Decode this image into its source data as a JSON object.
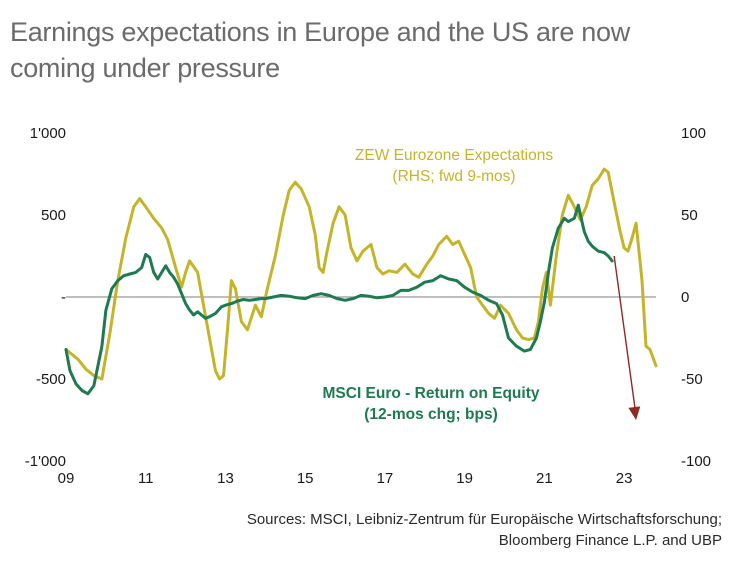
{
  "title": {
    "line1": "Earnings expectations in Europe and the US are now",
    "line2": "coming under pressure"
  },
  "sources": {
    "line1": "Sources: MSCI, Leibniz-Zentrum für Europäische Wirtschaftsforschung;",
    "line2": "Bloomberg Finance L.P. and UBP"
  },
  "colors": {
    "zew": "#c5b42a",
    "roe": "#1e7a50",
    "arrow": "#8c2a24",
    "zero_line": "#999999"
  },
  "chart_data": {
    "type": "line",
    "x_range": [
      2009,
      2023.8
    ],
    "y_left_range": [
      -1000,
      1000
    ],
    "y_right_range": [
      -100,
      100
    ],
    "x_ticks": [
      "09",
      "11",
      "13",
      "15",
      "17",
      "19",
      "21",
      "23"
    ],
    "y_left_ticks": [
      "1'000",
      "500",
      "-",
      "-500",
      "-1'000"
    ],
    "y_right_ticks": [
      "100",
      "50",
      "0",
      "-50",
      "-100"
    ],
    "annotations": {
      "zew_line1": "ZEW Eurozone Expectations",
      "zew_line2": "(RHS; fwd 9-mos)",
      "roe_line1": "MSCI Euro - Return on Equity",
      "roe_line2": "(12-mos chg; bps)"
    },
    "series": [
      {
        "name": "ZEW Eurozone Expectations",
        "axis": "right",
        "points": [
          [
            2009.0,
            -32
          ],
          [
            2009.3,
            -38
          ],
          [
            2009.5,
            -44
          ],
          [
            2009.7,
            -48
          ],
          [
            2009.9,
            -50
          ],
          [
            2010.1,
            -22
          ],
          [
            2010.3,
            10
          ],
          [
            2010.5,
            36
          ],
          [
            2010.7,
            55
          ],
          [
            2010.85,
            60
          ],
          [
            2011.0,
            55
          ],
          [
            2011.2,
            48
          ],
          [
            2011.4,
            42
          ],
          [
            2011.55,
            35
          ],
          [
            2011.75,
            18
          ],
          [
            2011.9,
            6
          ],
          [
            2012.0,
            15
          ],
          [
            2012.1,
            22
          ],
          [
            2012.3,
            15
          ],
          [
            2012.45,
            -5
          ],
          [
            2012.6,
            -25
          ],
          [
            2012.75,
            -45
          ],
          [
            2012.85,
            -50
          ],
          [
            2012.95,
            -48
          ],
          [
            2013.05,
            -20
          ],
          [
            2013.15,
            10
          ],
          [
            2013.25,
            5
          ],
          [
            2013.4,
            -15
          ],
          [
            2013.55,
            -20
          ],
          [
            2013.75,
            -5
          ],
          [
            2013.9,
            -12
          ],
          [
            2014.05,
            5
          ],
          [
            2014.25,
            25
          ],
          [
            2014.45,
            50
          ],
          [
            2014.6,
            65
          ],
          [
            2014.75,
            70
          ],
          [
            2014.9,
            66
          ],
          [
            2015.1,
            55
          ],
          [
            2015.25,
            38
          ],
          [
            2015.35,
            18
          ],
          [
            2015.45,
            15
          ],
          [
            2015.55,
            28
          ],
          [
            2015.7,
            45
          ],
          [
            2015.85,
            55
          ],
          [
            2016.0,
            50
          ],
          [
            2016.15,
            30
          ],
          [
            2016.3,
            22
          ],
          [
            2016.45,
            28
          ],
          [
            2016.65,
            32
          ],
          [
            2016.8,
            18
          ],
          [
            2016.95,
            14
          ],
          [
            2017.1,
            16
          ],
          [
            2017.3,
            15
          ],
          [
            2017.5,
            20
          ],
          [
            2017.7,
            14
          ],
          [
            2017.85,
            12
          ],
          [
            2018.05,
            20
          ],
          [
            2018.2,
            25
          ],
          [
            2018.35,
            32
          ],
          [
            2018.55,
            37
          ],
          [
            2018.7,
            32
          ],
          [
            2018.85,
            34
          ],
          [
            2019.0,
            26
          ],
          [
            2019.15,
            18
          ],
          [
            2019.3,
            0
          ],
          [
            2019.45,
            -5
          ],
          [
            2019.6,
            -10
          ],
          [
            2019.75,
            -13
          ],
          [
            2019.9,
            -5
          ],
          [
            2020.1,
            -10
          ],
          [
            2020.3,
            -20
          ],
          [
            2020.45,
            -25
          ],
          [
            2020.6,
            -26
          ],
          [
            2020.75,
            -25
          ],
          [
            2020.85,
            -15
          ],
          [
            2020.95,
            5
          ],
          [
            2021.05,
            15
          ],
          [
            2021.15,
            -5
          ],
          [
            2021.3,
            25
          ],
          [
            2021.45,
            50
          ],
          [
            2021.6,
            62
          ],
          [
            2021.75,
            55
          ],
          [
            2021.9,
            47
          ],
          [
            2022.05,
            55
          ],
          [
            2022.2,
            68
          ],
          [
            2022.35,
            72
          ],
          [
            2022.5,
            78
          ],
          [
            2022.6,
            76
          ],
          [
            2022.75,
            58
          ],
          [
            2022.9,
            40
          ],
          [
            2023.0,
            30
          ],
          [
            2023.1,
            28
          ],
          [
            2023.2,
            36
          ],
          [
            2023.3,
            45
          ],
          [
            2023.45,
            10
          ],
          [
            2023.55,
            -30
          ],
          [
            2023.65,
            -32
          ],
          [
            2023.8,
            -42
          ]
        ]
      },
      {
        "name": "MSCI Euro - Return on Equity",
        "axis": "left",
        "points": [
          [
            2009.0,
            -320
          ],
          [
            2009.1,
            -450
          ],
          [
            2009.25,
            -530
          ],
          [
            2009.4,
            -570
          ],
          [
            2009.55,
            -590
          ],
          [
            2009.7,
            -540
          ],
          [
            2009.8,
            -420
          ],
          [
            2009.9,
            -300
          ],
          [
            2010.0,
            -80
          ],
          [
            2010.15,
            50
          ],
          [
            2010.3,
            100
          ],
          [
            2010.45,
            130
          ],
          [
            2010.6,
            140
          ],
          [
            2010.75,
            150
          ],
          [
            2010.9,
            180
          ],
          [
            2011.0,
            260
          ],
          [
            2011.1,
            240
          ],
          [
            2011.2,
            150
          ],
          [
            2011.3,
            110
          ],
          [
            2011.4,
            150
          ],
          [
            2011.5,
            190
          ],
          [
            2011.6,
            150
          ],
          [
            2011.7,
            120
          ],
          [
            2011.8,
            80
          ],
          [
            2011.9,
            20
          ],
          [
            2012.0,
            -40
          ],
          [
            2012.1,
            -80
          ],
          [
            2012.2,
            -110
          ],
          [
            2012.3,
            -90
          ],
          [
            2012.4,
            -110
          ],
          [
            2012.5,
            -130
          ],
          [
            2012.6,
            -120
          ],
          [
            2012.75,
            -100
          ],
          [
            2012.9,
            -60
          ],
          [
            2013.0,
            -50
          ],
          [
            2013.15,
            -40
          ],
          [
            2013.3,
            -25
          ],
          [
            2013.45,
            -15
          ],
          [
            2013.6,
            -20
          ],
          [
            2013.75,
            -15
          ],
          [
            2013.9,
            -10
          ],
          [
            2014.0,
            -10
          ],
          [
            2014.2,
            0
          ],
          [
            2014.4,
            10
          ],
          [
            2014.6,
            5
          ],
          [
            2014.8,
            -5
          ],
          [
            2015.0,
            -10
          ],
          [
            2015.2,
            10
          ],
          [
            2015.4,
            20
          ],
          [
            2015.6,
            10
          ],
          [
            2015.8,
            -10
          ],
          [
            2016.0,
            -20
          ],
          [
            2016.2,
            -10
          ],
          [
            2016.4,
            10
          ],
          [
            2016.6,
            5
          ],
          [
            2016.8,
            -5
          ],
          [
            2017.0,
            0
          ],
          [
            2017.2,
            10
          ],
          [
            2017.4,
            40
          ],
          [
            2017.6,
            40
          ],
          [
            2017.8,
            60
          ],
          [
            2018.0,
            90
          ],
          [
            2018.2,
            100
          ],
          [
            2018.4,
            130
          ],
          [
            2018.6,
            110
          ],
          [
            2018.8,
            100
          ],
          [
            2019.0,
            60
          ],
          [
            2019.2,
            30
          ],
          [
            2019.4,
            10
          ],
          [
            2019.6,
            -20
          ],
          [
            2019.8,
            -40
          ],
          [
            2019.95,
            -110
          ],
          [
            2020.1,
            -250
          ],
          [
            2020.3,
            -300
          ],
          [
            2020.5,
            -330
          ],
          [
            2020.65,
            -320
          ],
          [
            2020.8,
            -250
          ],
          [
            2020.9,
            -150
          ],
          [
            2021.0,
            -30
          ],
          [
            2021.1,
            150
          ],
          [
            2021.2,
            300
          ],
          [
            2021.35,
            420
          ],
          [
            2021.5,
            480
          ],
          [
            2021.6,
            460
          ],
          [
            2021.75,
            480
          ],
          [
            2021.85,
            560
          ],
          [
            2022.0,
            400
          ],
          [
            2022.1,
            340
          ],
          [
            2022.2,
            310
          ],
          [
            2022.35,
            280
          ],
          [
            2022.5,
            270
          ],
          [
            2022.6,
            250
          ],
          [
            2022.7,
            220
          ]
        ]
      }
    ],
    "arrow": {
      "from": [
        2022.75,
        25
      ],
      "to": [
        2023.3,
        -75
      ],
      "axis": "right"
    }
  }
}
